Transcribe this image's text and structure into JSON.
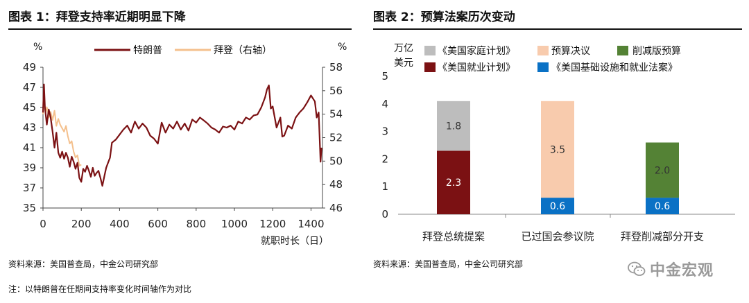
{
  "chart1": {
    "title": "图表 1：拜登支持率近期明显下降",
    "left_unit": "%",
    "right_unit": "%",
    "xlabel": "就职时长（日）",
    "legend": [
      "特朗普",
      "拜登（右轴）"
    ],
    "source": "资料来源：美国普查局，中金公司研究部",
    "note": "注：以特朗普在任期间支持率变化时间轴作为对比",
    "colors": {
      "trump": "#7b1113",
      "biden": "#f4c08d"
    }
  },
  "chart2": {
    "title": "图表 2：预算法案历次变动",
    "unit": "万亿美元",
    "source": "资料来源：美国普查局，中金公司研究部",
    "legend": [
      "《美国家庭计划》",
      "预算决议",
      "削减版预算",
      "《美国就业计划》",
      "《美国基础设施和就业法案》"
    ],
    "colors": {
      "family": "#bdbdbd",
      "budget": "#f8cbad",
      "cut": "#548235",
      "jobs": "#7b1113",
      "infra": "#0a71c5"
    }
  },
  "watermark": "中金宏观",
  "chart_data": [
    {
      "type": "line",
      "title": "图表 1：拜登支持率近期明显下降",
      "xlabel": "就职时长（日）",
      "ylabel": "%",
      "y2label": "%",
      "xlim": [
        0,
        1460
      ],
      "xticks": [
        0,
        200,
        400,
        600,
        800,
        1000,
        1200,
        1400
      ],
      "ylim": [
        35,
        49
      ],
      "yticks": [
        35,
        37,
        39,
        41,
        43,
        45,
        47,
        49
      ],
      "y2lim": [
        46,
        58
      ],
      "y2ticks": [
        46,
        48,
        50,
        52,
        54,
        56,
        58
      ],
      "legend_position": "top",
      "grid": false,
      "series": [
        {
          "name": "特朗普",
          "axis": "left",
          "x": [
            0,
            5,
            10,
            20,
            30,
            40,
            50,
            60,
            70,
            80,
            90,
            100,
            110,
            120,
            130,
            140,
            150,
            160,
            170,
            180,
            190,
            200,
            210,
            220,
            230,
            240,
            250,
            260,
            270,
            280,
            290,
            300,
            310,
            320,
            330,
            340,
            350,
            360,
            380,
            400,
            420,
            440,
            460,
            480,
            500,
            520,
            540,
            560,
            580,
            600,
            620,
            640,
            660,
            680,
            700,
            720,
            740,
            760,
            780,
            800,
            820,
            840,
            860,
            880,
            900,
            920,
            940,
            960,
            980,
            1000,
            1020,
            1040,
            1060,
            1080,
            1100,
            1120,
            1140,
            1160,
            1170,
            1180,
            1190,
            1200,
            1220,
            1240,
            1250,
            1260,
            1280,
            1300,
            1320,
            1340,
            1360,
            1380,
            1400,
            1420,
            1430,
            1440,
            1450,
            1455
          ],
          "values": [
            44.5,
            47.3,
            45.0,
            43.3,
            44.8,
            44.0,
            42.6,
            41.0,
            42.5,
            40.5,
            40.0,
            40.6,
            39.9,
            40.5,
            40.0,
            39.1,
            40.1,
            39.6,
            38.9,
            39.5,
            38.0,
            37.6,
            38.9,
            38.6,
            39.2,
            38.7,
            38.1,
            39.0,
            38.2,
            38.5,
            38.7,
            38.0,
            37.2,
            38.1,
            39.0,
            39.5,
            40.0,
            41.5,
            41.8,
            42.3,
            42.8,
            43.2,
            42.5,
            43.6,
            42.9,
            43.4,
            43.0,
            42.2,
            41.9,
            41.4,
            43.5,
            42.5,
            43.3,
            42.9,
            43.6,
            42.8,
            43.4,
            42.7,
            43.8,
            43.5,
            44.0,
            43.7,
            43.4,
            43.0,
            42.8,
            42.5,
            43.1,
            43.0,
            43.2,
            42.8,
            43.6,
            43.4,
            44.0,
            43.8,
            44.2,
            44.3,
            45.0,
            46.0,
            46.8,
            47.2,
            44.9,
            45.1,
            43.0,
            44.0,
            42.1,
            42.2,
            43.2,
            42.9,
            44.0,
            44.5,
            44.9,
            45.5,
            46.2,
            45.6,
            44.0,
            44.5,
            39.6,
            41.0
          ]
        },
        {
          "name": "拜登（右轴）",
          "axis": "right",
          "x": [
            0,
            5,
            10,
            15,
            20,
            25,
            30,
            40,
            50,
            60,
            70,
            80,
            90,
            100,
            110,
            120,
            130,
            140,
            150,
            160,
            170,
            180,
            190,
            200
          ],
          "values": [
            54.0,
            55.0,
            54.6,
            54.2,
            54.6,
            54.3,
            53.7,
            54.2,
            53.5,
            54.3,
            53.0,
            53.6,
            53.1,
            52.8,
            52.5,
            53.0,
            52.1,
            51.5,
            51.7,
            50.8,
            50.3,
            50.5,
            49.6,
            49.7
          ]
        }
      ]
    },
    {
      "type": "bar",
      "stacked": true,
      "title": "图表 2：预算法案历次变动",
      "ylabel": "万亿美元",
      "ylim": [
        0,
        5
      ],
      "yticks": [
        0,
        1,
        2,
        3,
        4,
        5
      ],
      "categories": [
        "拜登总统提案",
        "已过国会参议院",
        "拜登削减部分开支"
      ],
      "legend_position": "top",
      "series": [
        {
          "name": "《美国基础设施和就业法案》",
          "values": [
            0,
            0.6,
            0.6
          ]
        },
        {
          "name": "《美国就业计划》",
          "values": [
            2.3,
            0,
            0
          ]
        },
        {
          "name": "《美国家庭计划》",
          "values": [
            1.8,
            0,
            0
          ]
        },
        {
          "name": "预算决议",
          "values": [
            0,
            3.5,
            0
          ]
        },
        {
          "name": "削减版预算",
          "values": [
            0,
            0,
            2.0
          ]
        }
      ]
    }
  ]
}
